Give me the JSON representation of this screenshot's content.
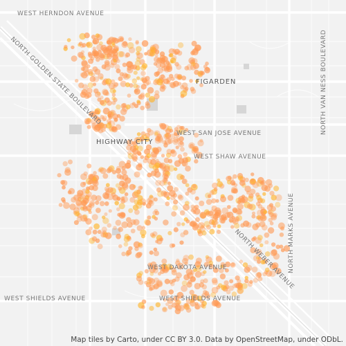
{
  "map": {
    "street_labels": {
      "herndon": "WEST HERNDON AVENUE",
      "golden_state": "NORTH GOLDEN STATE BOULEVARD",
      "van_ness": "NORTH VAN NESS BOULEVARD",
      "san_jose": "WEST SAN JOSE AVENUE",
      "shaw": "WEST SHAW AVENUE",
      "marks": "NORTH MARKS AVENUE",
      "weber": "NORTH WEBER AVENUE",
      "dakota": "WEST DAKOTA AVENUE",
      "shields_left": "WEST SHIELDS AVENUE",
      "shields_right": "WEST SHIELDS AVENUE"
    },
    "place_labels": {
      "figarden": "FIGARDEN",
      "highway_city": "HIGHWAY CITY"
    },
    "attribution": "Map tiles by Carto, under CC BY 3.0. Data by OpenStreetMap, under ODbL.",
    "colors": {
      "background": "#f2f2f2",
      "road": "#ffffff",
      "building": "#d6d6d6",
      "point_light": "#ff9a55",
      "point_dense": "#ffb52e"
    }
  }
}
